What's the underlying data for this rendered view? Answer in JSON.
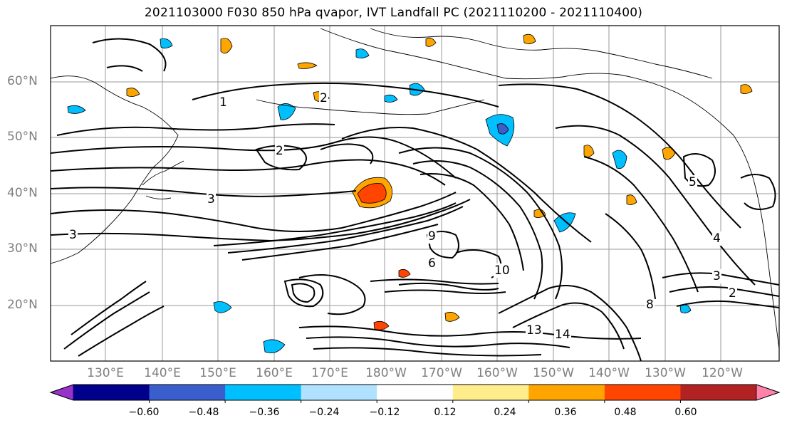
{
  "title": "2021103000 F030 850 hPa qvapor, IVT Landfall PC (2021110200 - 2021110400)",
  "map": {
    "lat_labels": [
      "60°N",
      "50°N",
      "40°N",
      "30°N",
      "20°N"
    ],
    "lon_labels": [
      "130°E",
      "140°E",
      "150°E",
      "160°E",
      "170°E",
      "180°W",
      "170°W",
      "160°W",
      "150°W",
      "140°W",
      "130°W",
      "120°W"
    ],
    "contour_labels": [
      "1",
      "2",
      "2",
      "3",
      "3",
      "4",
      "5",
      "6",
      "8",
      "9",
      "10",
      "13",
      "14",
      "2",
      "3"
    ]
  },
  "colorbar": {
    "tick_labels": [
      "−0.60",
      "−0.48",
      "−0.36",
      "−0.24",
      "−0.12",
      "0.12",
      "0.24",
      "0.36",
      "0.48",
      "0.60"
    ],
    "colors": [
      "#9932cc",
      "#00008b",
      "#3a5fcd",
      "#00bfff",
      "#b0e2ff",
      "#ffffff",
      "#ffec8b",
      "#ffa500",
      "#ff4500",
      "#b22222",
      "#ff82ab"
    ]
  }
}
